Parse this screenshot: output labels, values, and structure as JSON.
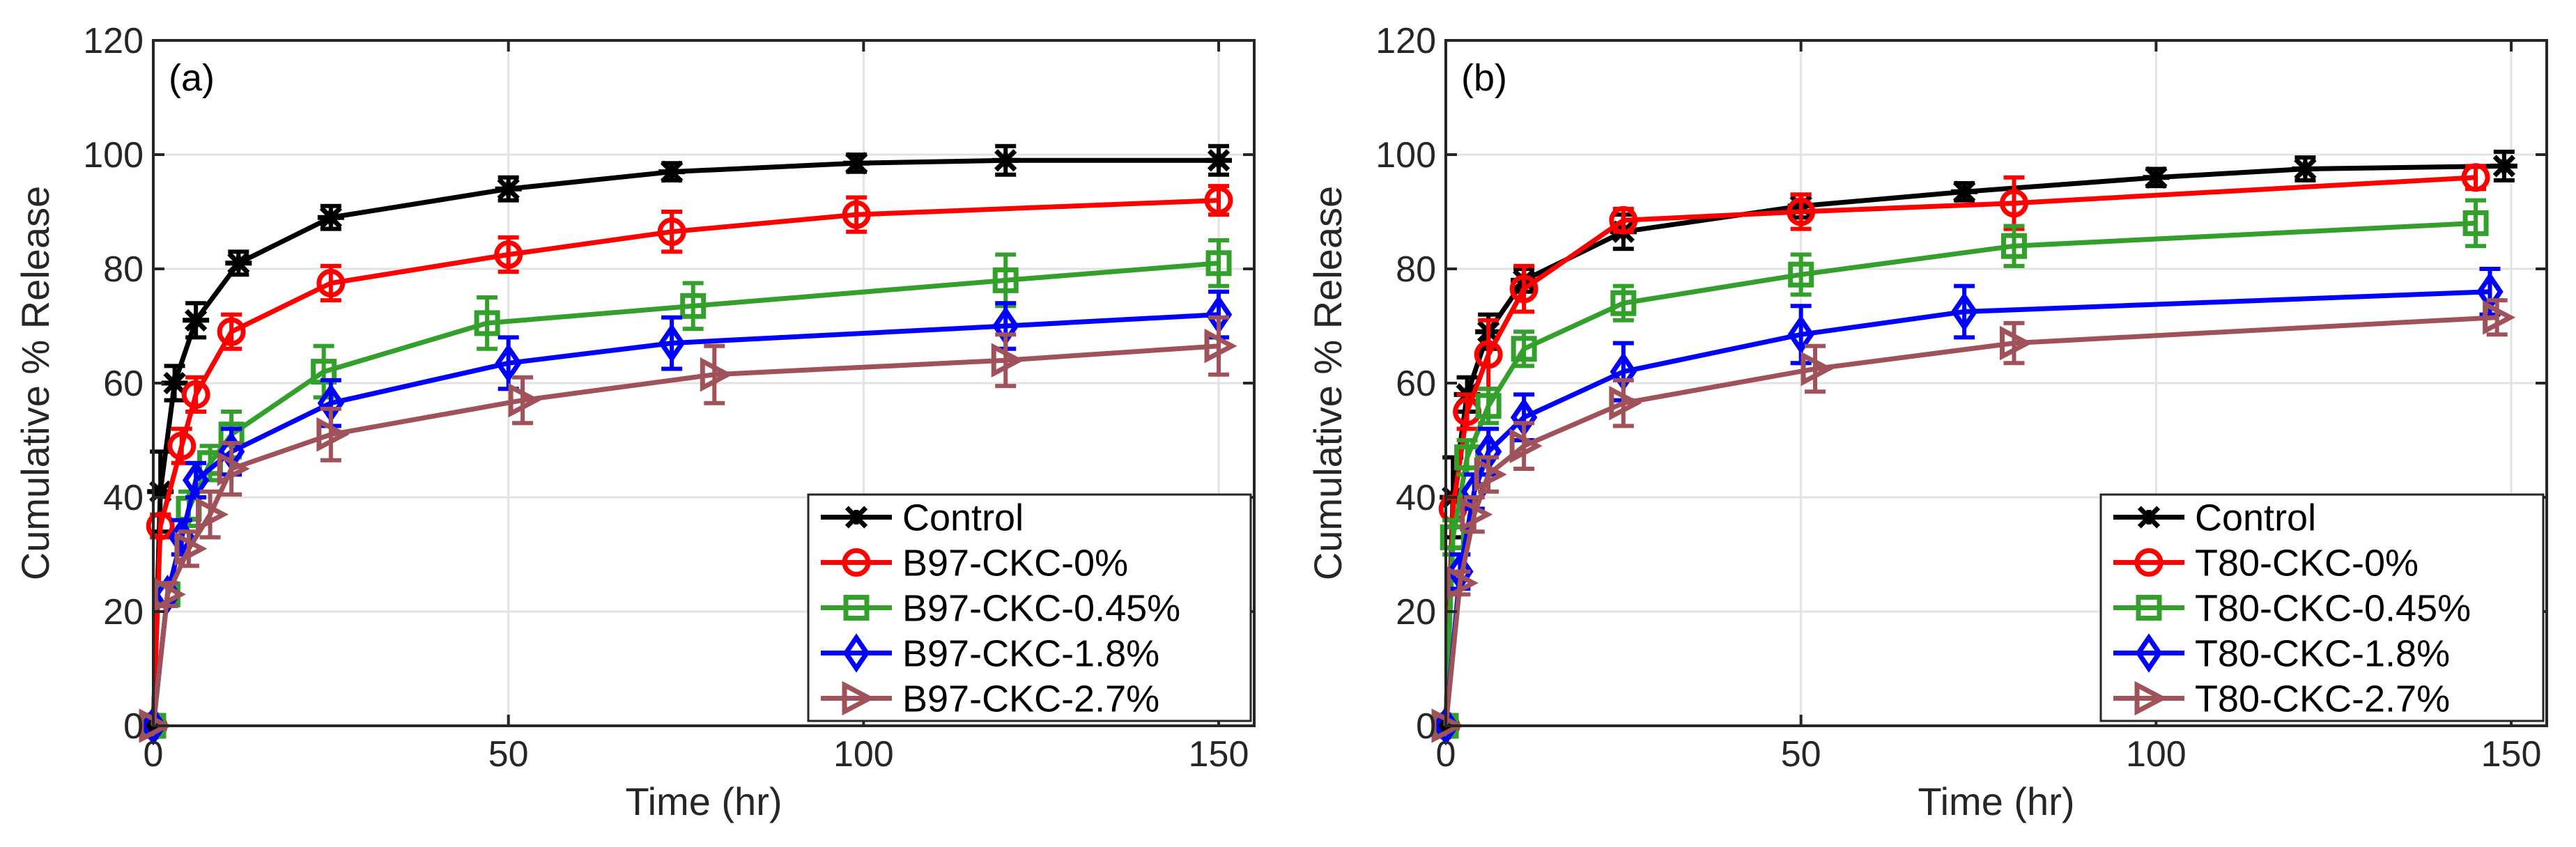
{
  "chart_data": [
    {
      "type": "line",
      "panel_label": "(a)",
      "title": "",
      "xlabel": "Time (hr)",
      "ylabel": "Cumulative % Release",
      "xlim": [
        0,
        155
      ],
      "ylim": [
        0,
        120
      ],
      "xticks": [
        0,
        50,
        100,
        150
      ],
      "yticks": [
        0,
        20,
        40,
        60,
        80,
        100,
        120
      ],
      "xtick_labels": [
        "0",
        "50",
        "100",
        "150"
      ],
      "ytick_labels": [
        "0",
        "20",
        "40",
        "60",
        "80",
        "100",
        "120"
      ],
      "grid": true,
      "legend_position": "bottom-right",
      "series": [
        {
          "name": "Control",
          "color": "#000000",
          "marker": "asterisk",
          "x": [
            0,
            1,
            3,
            6,
            12,
            25,
            50,
            73,
            99,
            120,
            150
          ],
          "y": [
            0,
            41,
            60,
            71,
            81,
            89,
            94,
            97,
            98.5,
            99,
            99
          ],
          "err": [
            0,
            7,
            3,
            3,
            2,
            2,
            2,
            1.5,
            1.5,
            2.5,
            2.5
          ]
        },
        {
          "name": "B97-CKC-0%",
          "color": "#ff0000",
          "marker": "circle",
          "x": [
            0,
            1,
            4,
            6,
            11,
            25,
            50,
            73,
            99,
            150
          ],
          "y": [
            0,
            35,
            49,
            58,
            69,
            77.5,
            82.5,
            86.5,
            89.5,
            92
          ],
          "err": [
            0,
            2,
            3,
            3,
            3,
            3,
            3,
            3.5,
            3,
            2.5
          ]
        },
        {
          "name": "B97-CKC-0.45%",
          "color": "#33a02c",
          "marker": "square",
          "x": [
            0,
            2,
            5,
            8,
            11,
            24,
            47,
            76,
            120,
            150
          ],
          "y": [
            0,
            23,
            38,
            46,
            51,
            62,
            70.5,
            73.5,
            78,
            81
          ],
          "err": [
            0,
            2,
            3,
            3,
            4,
            4.5,
            4.5,
            4,
            4.5,
            4
          ]
        },
        {
          "name": "B97-CKC-1.8%",
          "color": "#0000ff",
          "marker": "diamond",
          "x": [
            0,
            2,
            4,
            6,
            11,
            25,
            50,
            73,
            120,
            150
          ],
          "y": [
            0,
            23,
            33,
            43,
            48,
            56.5,
            63.5,
            67,
            70,
            72
          ],
          "err": [
            0,
            2,
            3,
            3,
            4,
            4,
            4.5,
            4.5,
            4,
            4
          ]
        },
        {
          "name": "B97-CKC-2.7%",
          "color": "#a0525a",
          "marker": "triangle-right",
          "x": [
            0,
            2,
            5,
            8,
            11,
            25,
            52,
            79,
            120,
            150
          ],
          "y": [
            0,
            23,
            31,
            37,
            45,
            51,
            57,
            61.5,
            64,
            66.5
          ],
          "err": [
            0,
            2,
            3,
            4,
            4.5,
            4.5,
            4,
            5,
            4.5,
            5
          ]
        }
      ]
    },
    {
      "type": "line",
      "panel_label": "(b)",
      "title": "",
      "xlabel": "Time (hr)",
      "ylabel": "Cumulative % Release",
      "xlim": [
        0,
        155
      ],
      "ylim": [
        0,
        120
      ],
      "xticks": [
        0,
        50,
        100,
        150
      ],
      "yticks": [
        0,
        20,
        40,
        60,
        80,
        100,
        120
      ],
      "xtick_labels": [
        "0",
        "50",
        "100",
        "150"
      ],
      "ytick_labels": [
        "0",
        "20",
        "40",
        "60",
        "80",
        "100",
        "120"
      ],
      "grid": true,
      "legend_position": "bottom-right",
      "series": [
        {
          "name": "Control",
          "color": "#000000",
          "marker": "asterisk",
          "x": [
            0,
            1,
            3,
            6,
            11,
            25,
            50,
            73,
            100,
            121,
            149
          ],
          "y": [
            0,
            40,
            58,
            69,
            78,
            86.5,
            91,
            93.5,
            96,
            97.5,
            98
          ],
          "err": [
            0,
            7,
            3,
            3,
            2,
            3,
            2,
            1.5,
            1.5,
            2,
            2.5
          ]
        },
        {
          "name": "T80-CKC-0%",
          "color": "#ff0000",
          "marker": "circle",
          "x": [
            0,
            1,
            3,
            6,
            11,
            25,
            50,
            80,
            145
          ],
          "y": [
            0,
            38,
            55,
            65,
            76.5,
            88.5,
            90,
            91.5,
            96
          ],
          "err": [
            0,
            2,
            3,
            6,
            4,
            2,
            3,
            4.5,
            2
          ]
        },
        {
          "name": "T80-CKC-0.45%",
          "color": "#33a02c",
          "marker": "square",
          "x": [
            0,
            1,
            3,
            6,
            11,
            25,
            50,
            80,
            145
          ],
          "y": [
            0,
            33,
            47,
            56,
            66,
            74,
            79,
            84,
            88
          ],
          "err": [
            0,
            3,
            3,
            3,
            3,
            3,
            3.5,
            3.5,
            4
          ]
        },
        {
          "name": "T80-CKC-1.8%",
          "color": "#0000ff",
          "marker": "diamond",
          "x": [
            0,
            2,
            4,
            6,
            11,
            25,
            50,
            73,
            147
          ],
          "y": [
            0,
            27,
            41,
            48,
            54,
            62,
            68.5,
            72.5,
            76
          ],
          "err": [
            0,
            3,
            3,
            4,
            4,
            5,
            5,
            4.5,
            4
          ]
        },
        {
          "name": "T80-CKC-2.7%",
          "color": "#a0525a",
          "marker": "triangle-right",
          "x": [
            0,
            2,
            4,
            6,
            11,
            25,
            52,
            80,
            148
          ],
          "y": [
            0,
            25,
            37,
            44,
            49,
            56.5,
            62.5,
            67,
            71.5
          ],
          "err": [
            0,
            2,
            3,
            3,
            4,
            4,
            4,
            3.5,
            3
          ]
        }
      ]
    }
  ]
}
